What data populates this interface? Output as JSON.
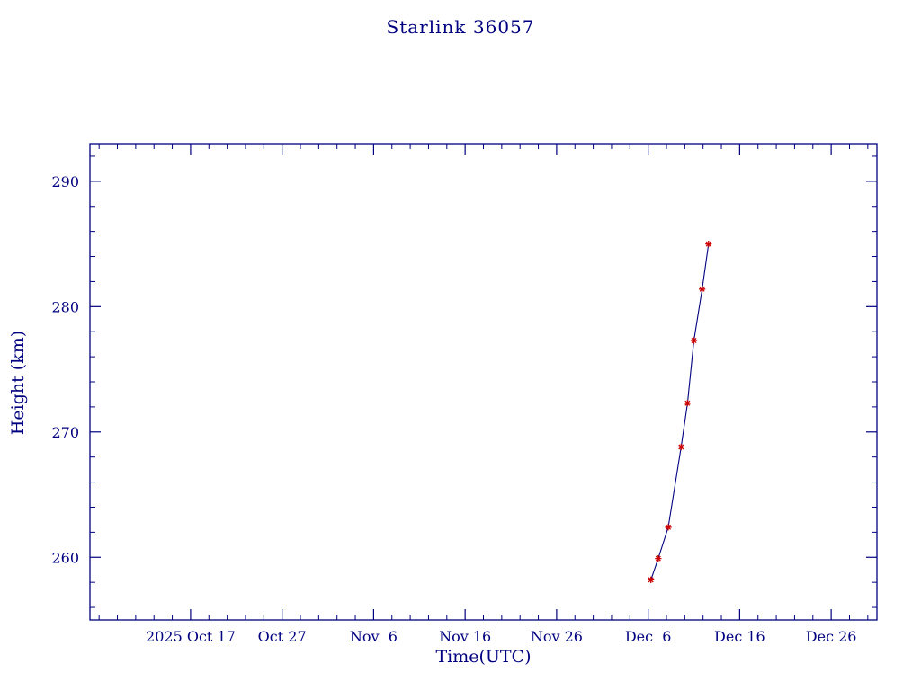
{
  "chart_data": {
    "type": "line",
    "title": "Starlink 36057",
    "xlabel": "Time(UTC)",
    "ylabel": "Height (km)",
    "x_domain_days": [
      0,
      86
    ],
    "x_domain_dates": {
      "start": "2025 Oct 6",
      "end": "2025 Dec 31"
    },
    "x_ticks": [
      {
        "day": 11,
        "label": "2025 Oct 17"
      },
      {
        "day": 21,
        "label": "Oct 27"
      },
      {
        "day": 31,
        "label": "Nov  6"
      },
      {
        "day": 41,
        "label": "Nov 16"
      },
      {
        "day": 51,
        "label": "Nov 26"
      },
      {
        "day": 61,
        "label": "Dec  6"
      },
      {
        "day": 71,
        "label": "Dec 16"
      },
      {
        "day": 81,
        "label": "Dec 26"
      }
    ],
    "x_minor_step_days": 2,
    "ylim": [
      255,
      293
    ],
    "y_ticks": [
      260,
      270,
      280,
      290
    ],
    "y_minor_step_km": 2,
    "grid": false,
    "legend": false,
    "series": [
      {
        "name": "height",
        "x_days": [
          61.3,
          62.1,
          63.2,
          64.6,
          65.3,
          66.0,
          66.9,
          67.6
        ],
        "x_dates_utc": [
          "Dec 6",
          "Dec 7",
          "Dec 8",
          "Dec 9",
          "Dec 10",
          "Dec 11",
          "Dec 11",
          "Dec 12"
        ],
        "heights_km": [
          258.2,
          259.9,
          262.4,
          268.8,
          272.3,
          277.3,
          281.4,
          285.0
        ]
      }
    ],
    "colors": {
      "axis": "#000080",
      "text": "#000080",
      "line": "#000080",
      "marker": "#cc0000",
      "background": "#ffffff"
    },
    "marker": "asterisk"
  }
}
